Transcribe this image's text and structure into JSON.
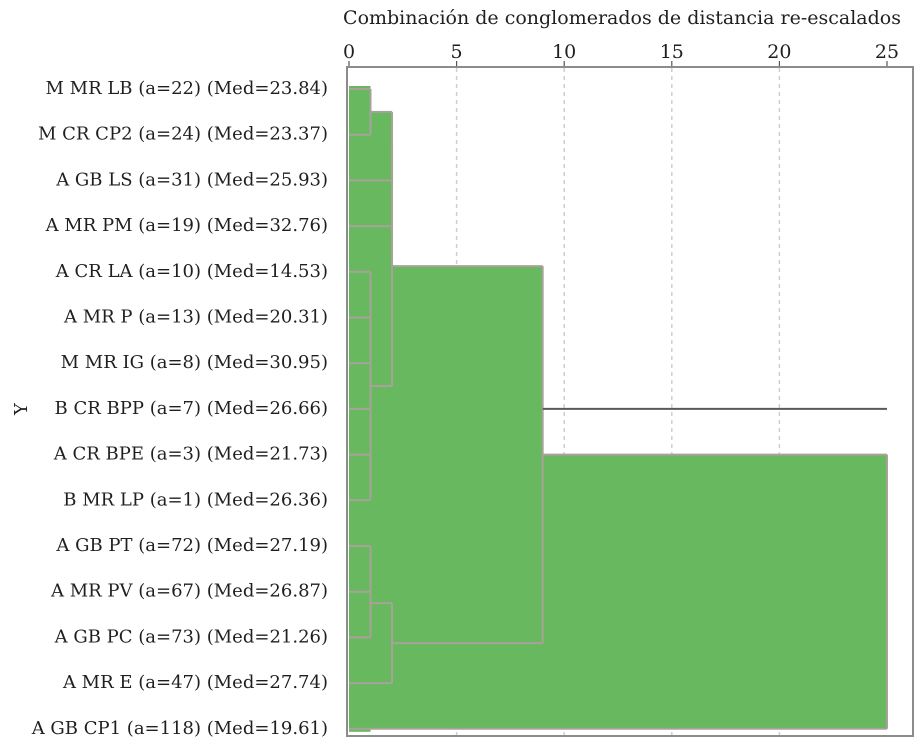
{
  "chart_data": {
    "type": "dendrogram",
    "title": "Combinación de conglomerados de distancia re-escalados",
    "ylabel": "Y",
    "xlim": [
      0,
      25
    ],
    "x_ticks": [
      0,
      5,
      10,
      15,
      20,
      25
    ],
    "grid": true,
    "colors": {
      "fill": "#67b85e",
      "edge": "#a8a29a",
      "frame": "#8c8c8c",
      "grid": "#cfcfcf"
    },
    "leaves": [
      "M MR LB (a=22) (Med=23.84)",
      "M CR CP2 (a=24) (Med=23.37)",
      "A GB LS (a=31) (Med=25.93)",
      "A MR PM (a=19) (Med=32.76)",
      "A CR LA (a=10) (Med=14.53)",
      "A MR P (a=13) (Med=20.31)",
      "M MR IG (a=8) (Med=30.95)",
      "B CR BPP (a=7) (Med=26.66)",
      "A CR BPE (a=3) (Med=21.73)",
      "B MR LP (a=1) (Med=26.36)",
      "A GB PT (a=72) (Med=27.19)",
      "A MR PV (a=67) (Med=26.87)",
      "A GB PC (a=73) (Med=21.26)",
      "A MR E (a=47) (Med=27.74)",
      "A GB CP1 (a=118) (Med=19.61)"
    ],
    "merges": [
      {
        "id": "c1",
        "children": [
          "L0",
          "L1"
        ],
        "distance": 1
      },
      {
        "id": "c2",
        "children": [
          "L4",
          "L5",
          "L6",
          "L7",
          "L8",
          "L9"
        ],
        "distance": 1
      },
      {
        "id": "c3",
        "children": [
          "c1",
          "L2"
        ],
        "distance": 2
      },
      {
        "id": "c4",
        "children": [
          "c3",
          "L3",
          "c2"
        ],
        "distance": 2
      },
      {
        "id": "c5",
        "children": [
          "L10",
          "L11"
        ],
        "distance": 1
      },
      {
        "id": "c6",
        "children": [
          "c5",
          "L12"
        ],
        "distance": 1
      },
      {
        "id": "c7",
        "children": [
          "c6",
          "L13"
        ],
        "distance": 2
      },
      {
        "id": "c8",
        "children": [
          "c4",
          "c7"
        ],
        "distance": 9
      },
      {
        "id": "c9",
        "children": [
          "c8",
          "L14"
        ],
        "distance": 25
      }
    ]
  }
}
